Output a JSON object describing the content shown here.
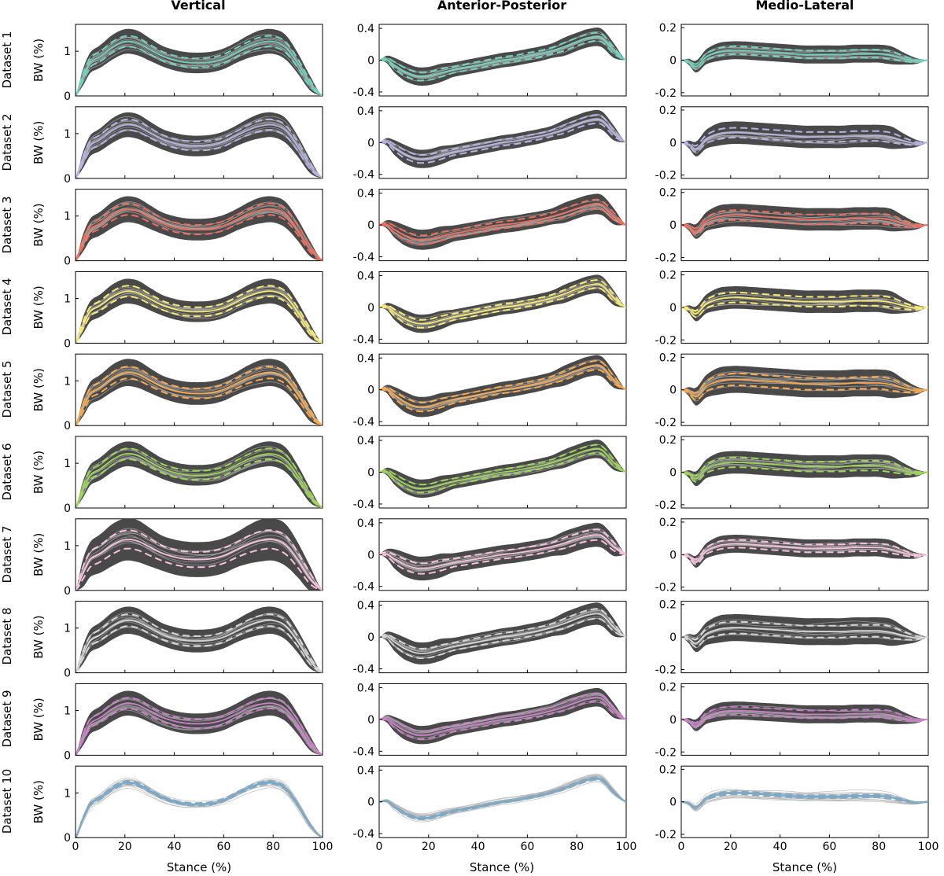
{
  "figure": {
    "columns": [
      "Vertical",
      "Anterior-Posterior",
      "Medio-Lateral"
    ],
    "rows": [
      "Dataset 1",
      "Dataset 2",
      "Dataset 3",
      "Dataset 4",
      "Dataset 5",
      "Dataset 6",
      "Dataset 7",
      "Dataset 8",
      "Dataset 9",
      "Dataset 10"
    ],
    "ylabel": "BW (%)",
    "xlabel": "Stance (%)",
    "dataset_colors": [
      "#6fd3bd",
      "#b5b3e3",
      "#f06e5b",
      "#f8ea71",
      "#f9a84a",
      "#9bd753",
      "#f7c0dc",
      "#d5d5d5",
      "#c97fc7",
      "#71abd2"
    ],
    "band_color": "#3a3a3a",
    "trial_color": "#b0b0b0"
  },
  "chart_data": {
    "type": "line",
    "description_of_series": "Each panel: individual trial curves (grey), group band (dark), mean (colored solid) and mean ± SD (colored dashed)",
    "x": [
      0,
      3,
      6,
      10,
      15,
      20,
      25,
      30,
      35,
      40,
      45,
      50,
      55,
      60,
      65,
      70,
      75,
      80,
      85,
      90,
      95,
      100
    ],
    "xlim": [
      0,
      100
    ],
    "xticks": [
      0,
      20,
      40,
      60,
      80,
      100
    ],
    "panels": [
      {
        "component": "Vertical",
        "ylim": [
          0,
          1.6
        ],
        "yticks": [
          0,
          1
        ],
        "mean": [
          0.0,
          0.4,
          0.72,
          0.85,
          1.05,
          1.17,
          1.14,
          1.0,
          0.86,
          0.77,
          0.72,
          0.71,
          0.73,
          0.8,
          0.93,
          1.06,
          1.15,
          1.17,
          1.05,
          0.7,
          0.27,
          0.0
        ],
        "sd": [
          0.0,
          0.08,
          0.1,
          0.11,
          0.12,
          0.12,
          0.12,
          0.11,
          0.1,
          0.1,
          0.1,
          0.1,
          0.1,
          0.1,
          0.1,
          0.11,
          0.12,
          0.12,
          0.12,
          0.1,
          0.07,
          0.0
        ],
        "datasets": [
          {
            "scale": 1.04,
            "sd_scale": 1.0
          },
          {
            "scale": 1.02,
            "sd_scale": 1.0
          },
          {
            "scale": 0.98,
            "sd_scale": 1.05
          },
          {
            "scale": 0.99,
            "sd_scale": 1.0
          },
          {
            "scale": 1.01,
            "sd_scale": 1.1
          },
          {
            "scale": 1.03,
            "sd_scale": 1.0
          },
          {
            "scale": 0.97,
            "sd_scale": 1.7
          },
          {
            "scale": 1.0,
            "sd_scale": 1.1
          },
          {
            "scale": 0.99,
            "sd_scale": 1.0
          },
          {
            "scale": 1.05,
            "sd_scale": 0.3
          }
        ]
      },
      {
        "component": "Anterior-Posterior",
        "ylim": [
          -0.45,
          0.45
        ],
        "yticks": [
          -0.4,
          0,
          0.4
        ],
        "mean": [
          0.0,
          0.01,
          -0.06,
          -0.14,
          -0.2,
          -0.2,
          -0.16,
          -0.12,
          -0.09,
          -0.06,
          -0.03,
          0.0,
          0.02,
          0.05,
          0.08,
          0.12,
          0.17,
          0.23,
          0.28,
          0.28,
          0.12,
          0.0
        ],
        "sd": [
          0.0,
          0.02,
          0.04,
          0.05,
          0.05,
          0.05,
          0.05,
          0.04,
          0.04,
          0.04,
          0.04,
          0.04,
          0.04,
          0.04,
          0.04,
          0.04,
          0.05,
          0.05,
          0.05,
          0.05,
          0.04,
          0.0
        ],
        "datasets": [
          {
            "scale": 1.0,
            "sd_scale": 1.0
          },
          {
            "scale": 1.0,
            "sd_scale": 1.0
          },
          {
            "scale": 0.9,
            "sd_scale": 1.1
          },
          {
            "scale": 1.0,
            "sd_scale": 1.0
          },
          {
            "scale": 1.05,
            "sd_scale": 1.1
          },
          {
            "scale": 1.0,
            "sd_scale": 1.0
          },
          {
            "scale": 0.85,
            "sd_scale": 1.3
          },
          {
            "scale": 1.0,
            "sd_scale": 1.2
          },
          {
            "scale": 0.95,
            "sd_scale": 1.0
          },
          {
            "scale": 1.0,
            "sd_scale": 0.3
          }
        ]
      },
      {
        "component": "Medio-Lateral",
        "ylim": [
          -0.22,
          0.22
        ],
        "yticks": [
          -0.2,
          0,
          0.2
        ],
        "mean": [
          0.0,
          -0.01,
          -0.04,
          0.02,
          0.05,
          0.06,
          0.06,
          0.055,
          0.05,
          0.045,
          0.04,
          0.035,
          0.035,
          0.035,
          0.035,
          0.04,
          0.04,
          0.04,
          0.03,
          0.01,
          -0.005,
          0.0
        ],
        "sd": [
          0.0,
          0.01,
          0.02,
          0.025,
          0.03,
          0.03,
          0.03,
          0.03,
          0.03,
          0.03,
          0.03,
          0.03,
          0.03,
          0.03,
          0.03,
          0.03,
          0.03,
          0.03,
          0.03,
          0.02,
          0.01,
          0.0
        ],
        "datasets": [
          {
            "scale": 1.0,
            "sd_scale": 0.8
          },
          {
            "scale": 1.0,
            "sd_scale": 1.0
          },
          {
            "scale": 1.0,
            "sd_scale": 1.0
          },
          {
            "scale": 1.0,
            "sd_scale": 1.0
          },
          {
            "scale": 1.05,
            "sd_scale": 1.2
          },
          {
            "scale": 1.0,
            "sd_scale": 1.0
          },
          {
            "scale": 1.1,
            "sd_scale": 0.8
          },
          {
            "scale": 0.95,
            "sd_scale": 1.2
          },
          {
            "scale": 0.9,
            "sd_scale": 0.8
          },
          {
            "scale": 0.9,
            "sd_scale": 0.3
          }
        ]
      }
    ]
  }
}
